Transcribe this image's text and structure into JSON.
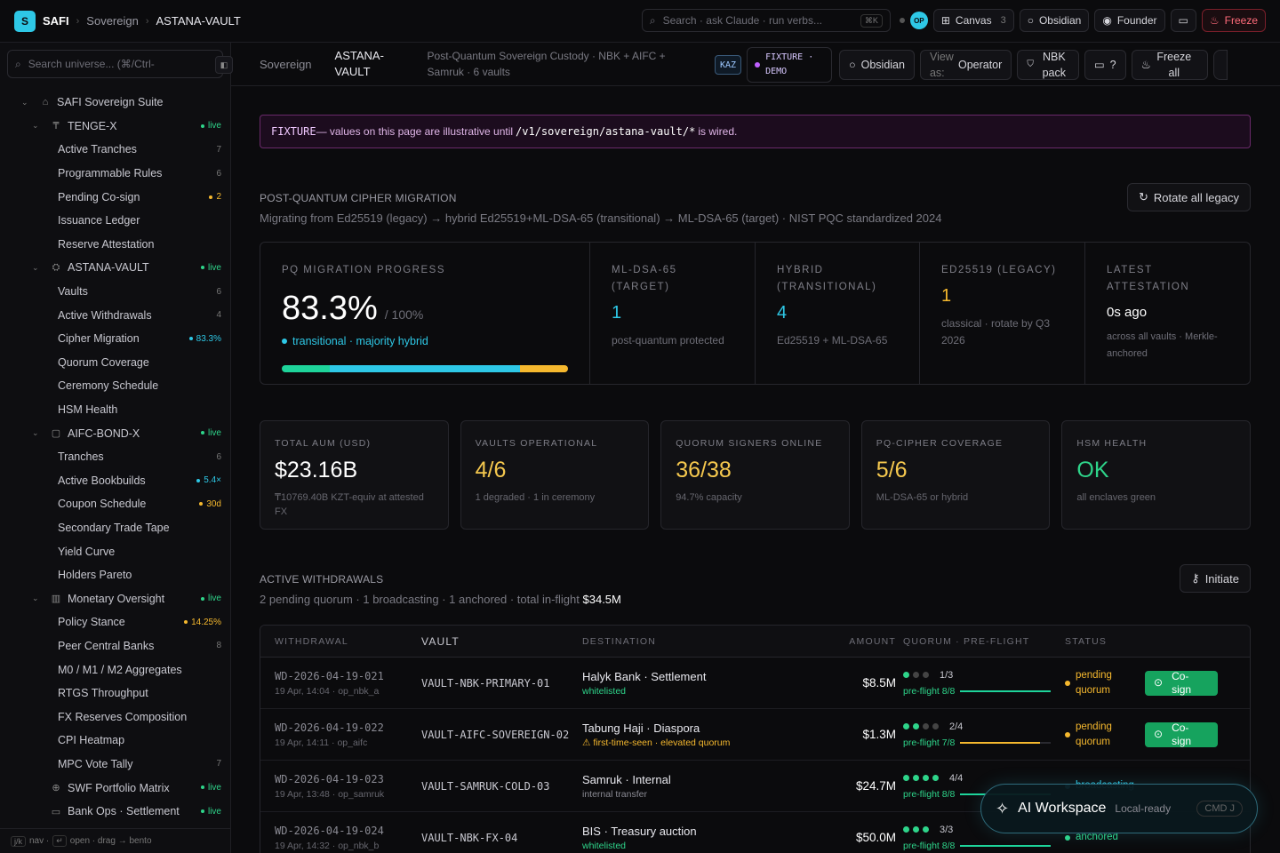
{
  "top": {
    "logo": "S",
    "brand": "SAFI",
    "crumbs": [
      "Sovereign",
      "ASTANA-VAULT"
    ],
    "search_placeholder": "Search · ask Claude · run verbs...",
    "search_kbd": "⌘K",
    "avatar": "OP",
    "canvas": "Canvas",
    "canvas_count": "3",
    "obsidian": "Obsidian",
    "founder": "Founder",
    "freeze": "Freeze"
  },
  "sidebar": {
    "search_placeholder": "Search universe... (⌘/Ctrl-",
    "items": [
      {
        "label": "SAFI Sovereign Suite",
        "lvl": 0,
        "chev": "⌄",
        "icon": "⌂",
        "badge": "",
        "bt": ""
      },
      {
        "label": "TENGE-X",
        "lvl": 1,
        "chev": "⌄",
        "icon": "₸",
        "badge": "live",
        "bt": "live"
      },
      {
        "label": "Active Tranches",
        "lvl": 2,
        "badge": "7",
        "bt": ""
      },
      {
        "label": "Programmable Rules",
        "lvl": 2,
        "badge": "6",
        "bt": ""
      },
      {
        "label": "Pending Co-sign",
        "lvl": 2,
        "badge": "2",
        "bt": "warn"
      },
      {
        "label": "Issuance Ledger",
        "lvl": 2,
        "badge": "",
        "bt": ""
      },
      {
        "label": "Reserve Attestation",
        "lvl": 2,
        "badge": "",
        "bt": ""
      },
      {
        "label": "ASTANA-VAULT",
        "lvl": 1,
        "chev": "⌄",
        "icon": "⛭",
        "badge": "live",
        "bt": "live"
      },
      {
        "label": "Vaults",
        "lvl": 2,
        "badge": "6",
        "bt": ""
      },
      {
        "label": "Active Withdrawals",
        "lvl": 2,
        "badge": "4",
        "bt": ""
      },
      {
        "label": "Cipher Migration",
        "lvl": 2,
        "badge": "83.3%",
        "bt": "cyan"
      },
      {
        "label": "Quorum Coverage",
        "lvl": 2,
        "badge": "",
        "bt": ""
      },
      {
        "label": "Ceremony Schedule",
        "lvl": 2,
        "badge": "",
        "bt": ""
      },
      {
        "label": "HSM Health",
        "lvl": 2,
        "badge": "",
        "bt": ""
      },
      {
        "label": "AIFC-BOND-X",
        "lvl": 1,
        "chev": "⌄",
        "icon": "▢",
        "badge": "live",
        "bt": "live"
      },
      {
        "label": "Tranches",
        "lvl": 2,
        "badge": "6",
        "bt": ""
      },
      {
        "label": "Active Bookbuilds",
        "lvl": 2,
        "badge": "5.4×",
        "bt": "cyan"
      },
      {
        "label": "Coupon Schedule",
        "lvl": 2,
        "badge": "30d",
        "bt": "warn"
      },
      {
        "label": "Secondary Trade Tape",
        "lvl": 2,
        "badge": "",
        "bt": ""
      },
      {
        "label": "Yield Curve",
        "lvl": 2,
        "badge": "",
        "bt": ""
      },
      {
        "label": "Holders Pareto",
        "lvl": 2,
        "badge": "",
        "bt": ""
      },
      {
        "label": "Monetary Oversight",
        "lvl": 1,
        "chev": "⌄",
        "icon": "▥",
        "badge": "live",
        "bt": "live"
      },
      {
        "label": "Policy Stance",
        "lvl": 2,
        "badge": "14.25%",
        "bt": "warn"
      },
      {
        "label": "Peer Central Banks",
        "lvl": 2,
        "badge": "8",
        "bt": ""
      },
      {
        "label": "M0 / M1 / M2 Aggregates",
        "lvl": 2,
        "badge": "",
        "bt": ""
      },
      {
        "label": "RTGS Throughput",
        "lvl": 2,
        "badge": "",
        "bt": ""
      },
      {
        "label": "FX Reserves Composition",
        "lvl": 2,
        "badge": "",
        "bt": ""
      },
      {
        "label": "CPI Heatmap",
        "lvl": 2,
        "badge": "",
        "bt": ""
      },
      {
        "label": "MPC Vote Tally",
        "lvl": 2,
        "badge": "7",
        "bt": ""
      },
      {
        "label": "SWF Portfolio Matrix",
        "lvl": 1,
        "chev": "",
        "icon": "⊕",
        "badge": "live",
        "bt": "live"
      },
      {
        "label": "Bank Ops · Settlement",
        "lvl": 1,
        "chev": "",
        "icon": "▭",
        "badge": "live",
        "bt": "live"
      }
    ],
    "foot": {
      "k1": "j/k",
      "t1": "nav ·",
      "k2": "↵",
      "t2": "open · drag → bento"
    }
  },
  "sub": {
    "c1": "Sovereign",
    "c2": "ASTANA-VAULT",
    "desc": "Post-Quantum Sovereign Custody · NBK + AIFC + Samruk · 6 vaults",
    "kaz": "KAZ",
    "fixture": "FIXTURE · DEMO",
    "obsidian": "Obsidian",
    "view_as": "View as:",
    "operator": "Operator",
    "nbk": "NBK pack",
    "help": "?",
    "freeze_all": "Freeze all"
  },
  "banner": {
    "strong": "FIXTURE",
    "text1": " — values on this page are illustrative until ",
    "code": "/v1/sovereign/astana-vault/*",
    "text2": " is wired."
  },
  "pq": {
    "title": "POST-QUANTUM CIPHER MIGRATION",
    "sub": "Migrating from Ed25519 (legacy) → hybrid Ed25519+ML-DSA-65 (transitional) → ML-DSA-65 (target) · NIST PQC standardized 2024",
    "rotate": "Rotate all legacy",
    "progress_label": "PQ MIGRATION PROGRESS",
    "progress_val": "83.3%",
    "progress_total": "/ 100%",
    "progress_note": "transitional · majority hybrid",
    "bar": [
      {
        "pct": 16.7,
        "color": "#1ed49a"
      },
      {
        "pct": 66.6,
        "color": "#2ec8e6"
      },
      {
        "pct": 16.7,
        "color": "#f5b82e"
      }
    ],
    "cells": [
      {
        "label": "ML-DSA-65 (TARGET)",
        "value": "1",
        "color": "#2ec8e6",
        "note": "post-quantum protected"
      },
      {
        "label": "HYBRID (TRANSITIONAL)",
        "value": "4",
        "color": "#2ec8e6",
        "note": "Ed25519 + ML-DSA-65"
      },
      {
        "label": "ED25519 (LEGACY)",
        "value": "1",
        "color": "#f5b82e",
        "note": "classical · rotate by Q3 2026"
      },
      {
        "label": "LATEST ATTESTATION",
        "value": "0s ago",
        "color": "#ffffff",
        "note": "across all vaults · Merkle-anchored"
      }
    ]
  },
  "kpis": [
    {
      "label": "TOTAL AUM (USD)",
      "value": "$23.16B",
      "color": "#ffffff",
      "note": "₸10769.40B KZT-equiv at attested FX"
    },
    {
      "label": "VAULTS OPERATIONAL",
      "value": "4/6",
      "color": "#f5c84e",
      "note": "1 degraded · 1 in ceremony"
    },
    {
      "label": "QUORUM SIGNERS ONLINE",
      "value": "36/38",
      "color": "#f5c84e",
      "note": "94.7% capacity"
    },
    {
      "label": "PQ-CIPHER COVERAGE",
      "value": "5/6",
      "color": "#f5c84e",
      "note": "ML-DSA-65 or hybrid"
    },
    {
      "label": "HSM HEALTH",
      "value": "OK",
      "color": "#2ed48a",
      "note": "all enclaves green"
    }
  ],
  "wd": {
    "title": "ACTIVE WITHDRAWALS",
    "sub": "2 pending quorum · 1 broadcasting · 1 anchored · total in-flight ",
    "total": "$34.5M",
    "initiate": "Initiate",
    "headers": [
      "WITHDRAWAL",
      "VAULT",
      "DESTINATION",
      "AMOUNT",
      "QUORUM · PRE-FLIGHT",
      "STATUS"
    ],
    "rows": [
      {
        "id": "WD-2026-04-19-021",
        "meta": "19 Apr, 14:04 · op_nbk_a",
        "vault": "VAULT-NBK-PRIMARY-01",
        "dest": "Halyk Bank · Settlement",
        "dsub": "whitelisted",
        "dt": "",
        "amt": "$8.5M",
        "q_on": 1,
        "q_total": 3,
        "q": "1/3",
        "pf": "pre-flight 8/8",
        "pf_frac": 1.0,
        "pf_color": "#1ed49a",
        "status": "pending quorum",
        "action": "Co-sign"
      },
      {
        "id": "WD-2026-04-19-022",
        "meta": "19 Apr, 14:11 · op_aifc",
        "vault": "VAULT-AIFC-SOVEREIGN-02",
        "dest": "Tabung Haji · Diaspora",
        "dsub": "⚠ first-time-seen · elevated quorum",
        "dt": "warn",
        "amt": "$1.3M",
        "q_on": 2,
        "q_total": 4,
        "q": "2/4",
        "pf": "pre-flight 7/8",
        "pf_frac": 0.88,
        "pf_color": "#f5b82e",
        "status": "pending quorum",
        "action": "Co-sign"
      },
      {
        "id": "WD-2026-04-19-023",
        "meta": "19 Apr, 13:48 · op_samruk",
        "vault": "VAULT-SAMRUK-COLD-03",
        "dest": "Samruk · Internal",
        "dsub": "internal transfer",
        "dt": "gray",
        "amt": "$24.7M",
        "q_on": 4,
        "q_total": 4,
        "q": "4/4",
        "pf": "pre-flight 8/8",
        "pf_frac": 1.0,
        "pf_color": "#1ed49a",
        "status": "broadcasting",
        "action": ""
      },
      {
        "id": "WD-2026-04-19-024",
        "meta": "19 Apr, 14:32 · op_nbk_b",
        "vault": "VAULT-NBK-FX-04",
        "dest": "BIS · Treasury auction",
        "dsub": "whitelisted",
        "dt": "",
        "amt": "$50.0M",
        "q_on": 3,
        "q_total": 3,
        "q": "3/3",
        "pf": "pre-flight 8/8",
        "pf_frac": 1.0,
        "pf_color": "#1ed49a",
        "status": "anchored",
        "action": ""
      }
    ]
  },
  "ai": {
    "title": "AI Workspace",
    "sub": "Local-ready",
    "kbd": "CMD J"
  }
}
